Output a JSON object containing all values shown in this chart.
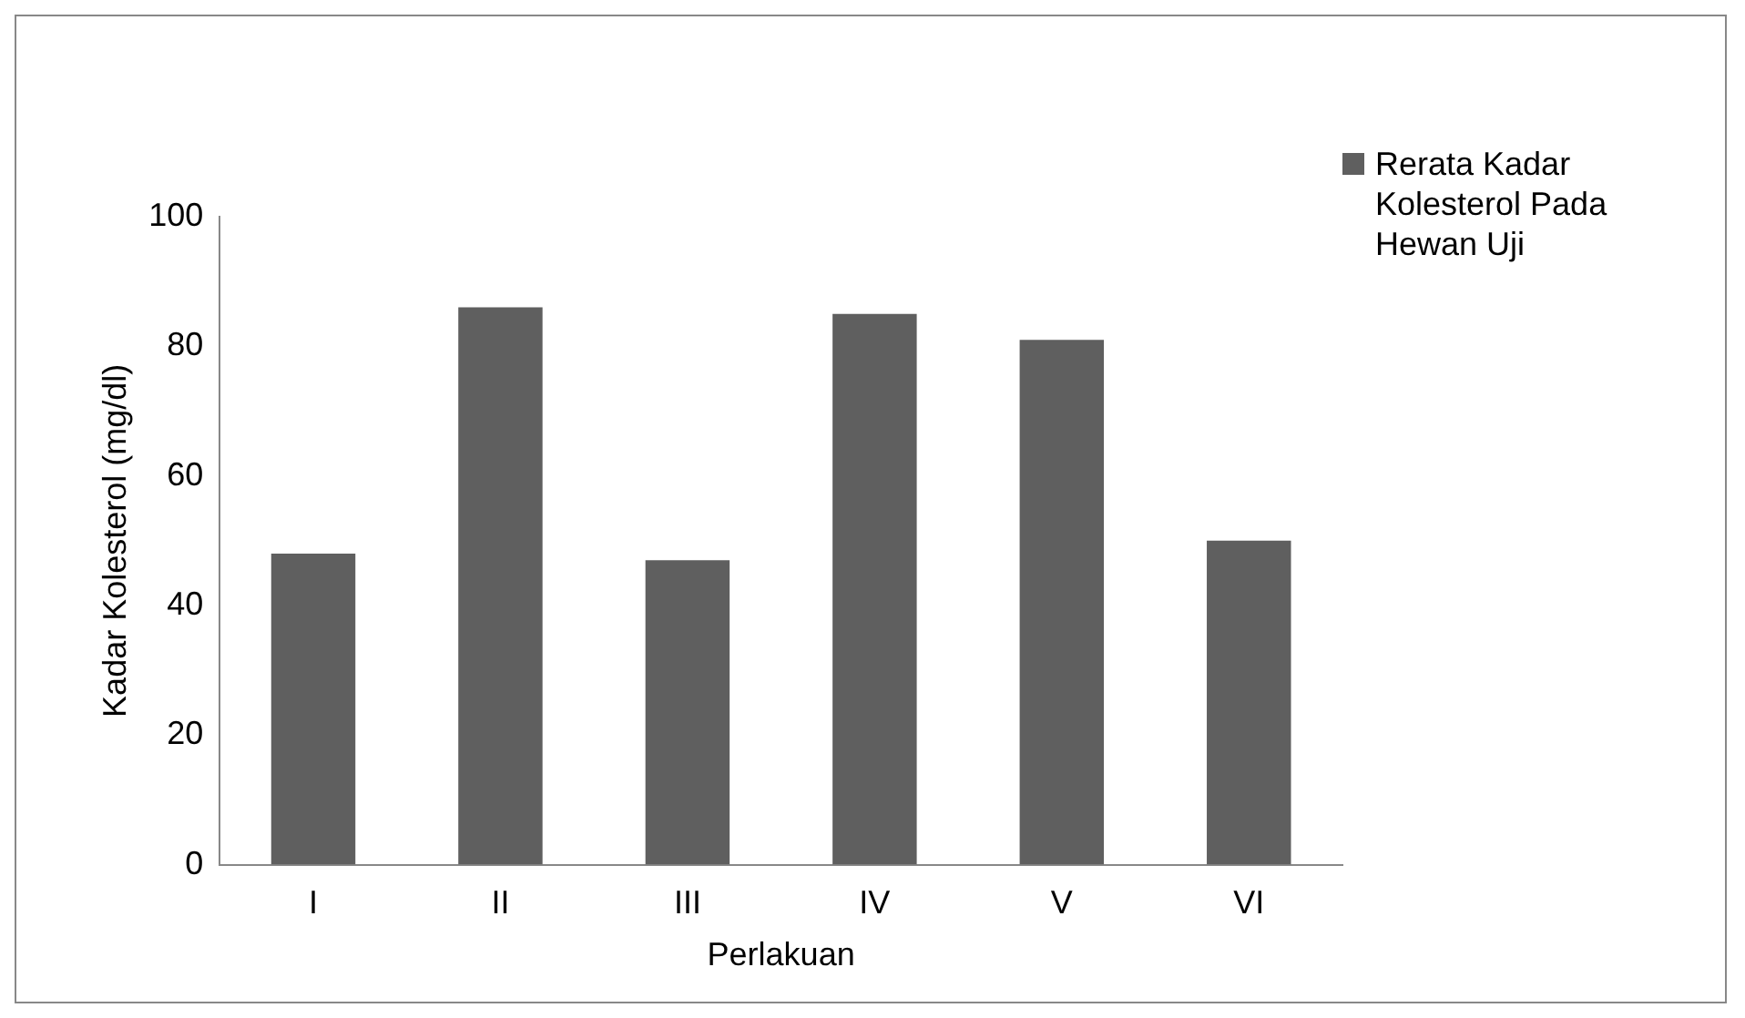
{
  "chart_data": {
    "type": "bar",
    "xlabel": "Perlakuan",
    "ylabel": "Kadar Kolesterol (mg/dl)",
    "categories": [
      "I",
      "II",
      "III",
      "IV",
      "V",
      "VI"
    ],
    "series": [
      {
        "name": "Rerata Kadar Kolesterol Pada Hewan Uji",
        "color": "#5f5f5f",
        "values": [
          48,
          86,
          47,
          85,
          81,
          50
        ]
      }
    ],
    "ylim": [
      0,
      100
    ],
    "yticks": [
      0,
      20,
      40,
      60,
      80,
      100
    ],
    "grid": false,
    "legend": "top right"
  }
}
